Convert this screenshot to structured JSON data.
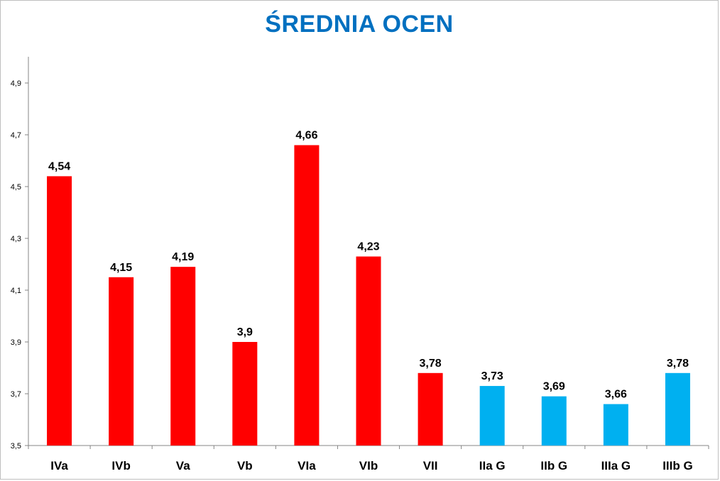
{
  "chart_data": {
    "type": "bar",
    "title": "ŚREDNIA OCEN",
    "xlabel": "",
    "ylabel": "",
    "categories": [
      "IVa",
      "IVb",
      "Va",
      "Vb",
      "VIa",
      "VIb",
      "VII",
      "IIa G",
      "IIb G",
      "IIIa G",
      "IIIb G"
    ],
    "values": [
      4.54,
      4.15,
      4.19,
      3.9,
      4.66,
      4.23,
      3.78,
      3.73,
      3.69,
      3.66,
      3.78
    ],
    "data_labels": [
      "4,54",
      "4,15",
      "4,19",
      "3,9",
      "4,66",
      "4,23",
      "3,78",
      "3,73",
      "3,69",
      "3,66",
      "3,78"
    ],
    "bar_colors": [
      "#ff0000",
      "#ff0000",
      "#ff0000",
      "#ff0000",
      "#ff0000",
      "#ff0000",
      "#ff0000",
      "#00b0f0",
      "#00b0f0",
      "#00b0f0",
      "#00b0f0"
    ],
    "ylim": [
      3.5,
      4.9
    ],
    "yticks": [
      3.5,
      3.7,
      3.9,
      4.1,
      4.3,
      4.5,
      4.7,
      4.9
    ],
    "ytick_labels": [
      "3,5",
      "3,7",
      "3,9",
      "4,1",
      "4,3",
      "4,5",
      "4,7",
      "4,9"
    ],
    "grid": false,
    "legend": "none"
  }
}
